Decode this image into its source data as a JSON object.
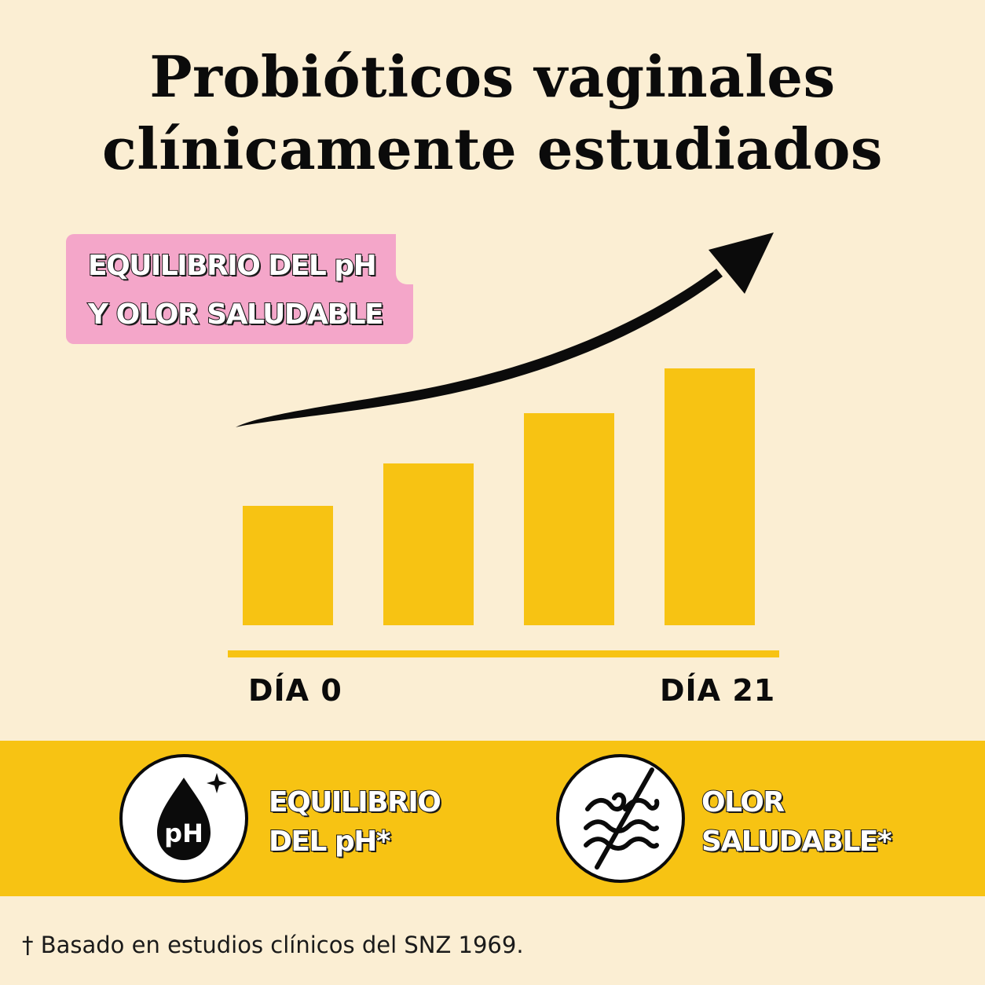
{
  "title": {
    "line1": "Probióticos vaginales",
    "line2": "clínicamente estudiados"
  },
  "callout": {
    "line1": "EQUILIBRIO DEL pH",
    "line2": "Y OLOR SALUDABLE"
  },
  "chart_data": {
    "type": "bar",
    "values": [
      152,
      206,
      270,
      327
    ],
    "x_start_label": "DÍA 0",
    "x_end_label": "DÍA 21",
    "trend": "increasing",
    "bar_color": "#f7c313",
    "axis_color": "#f7c313",
    "arrow_color": "#0b0b0b",
    "ylim": [
      0,
      360
    ]
  },
  "benefits": [
    {
      "icon": "ph-drop-icon",
      "line1": "EQUILIBRIO",
      "line2": "DEL pH*",
      "badge_text": "pH"
    },
    {
      "icon": "no-odor-icon",
      "line1": "OLOR",
      "line2": "SALUDABLE*"
    }
  ],
  "footnote": "† Basado en estudios clínicos del SNZ 1969.",
  "colors": {
    "background": "#fbeed3",
    "band": "#f7c313",
    "callout": "#f4a6c9",
    "text": "#0b0b0b"
  }
}
